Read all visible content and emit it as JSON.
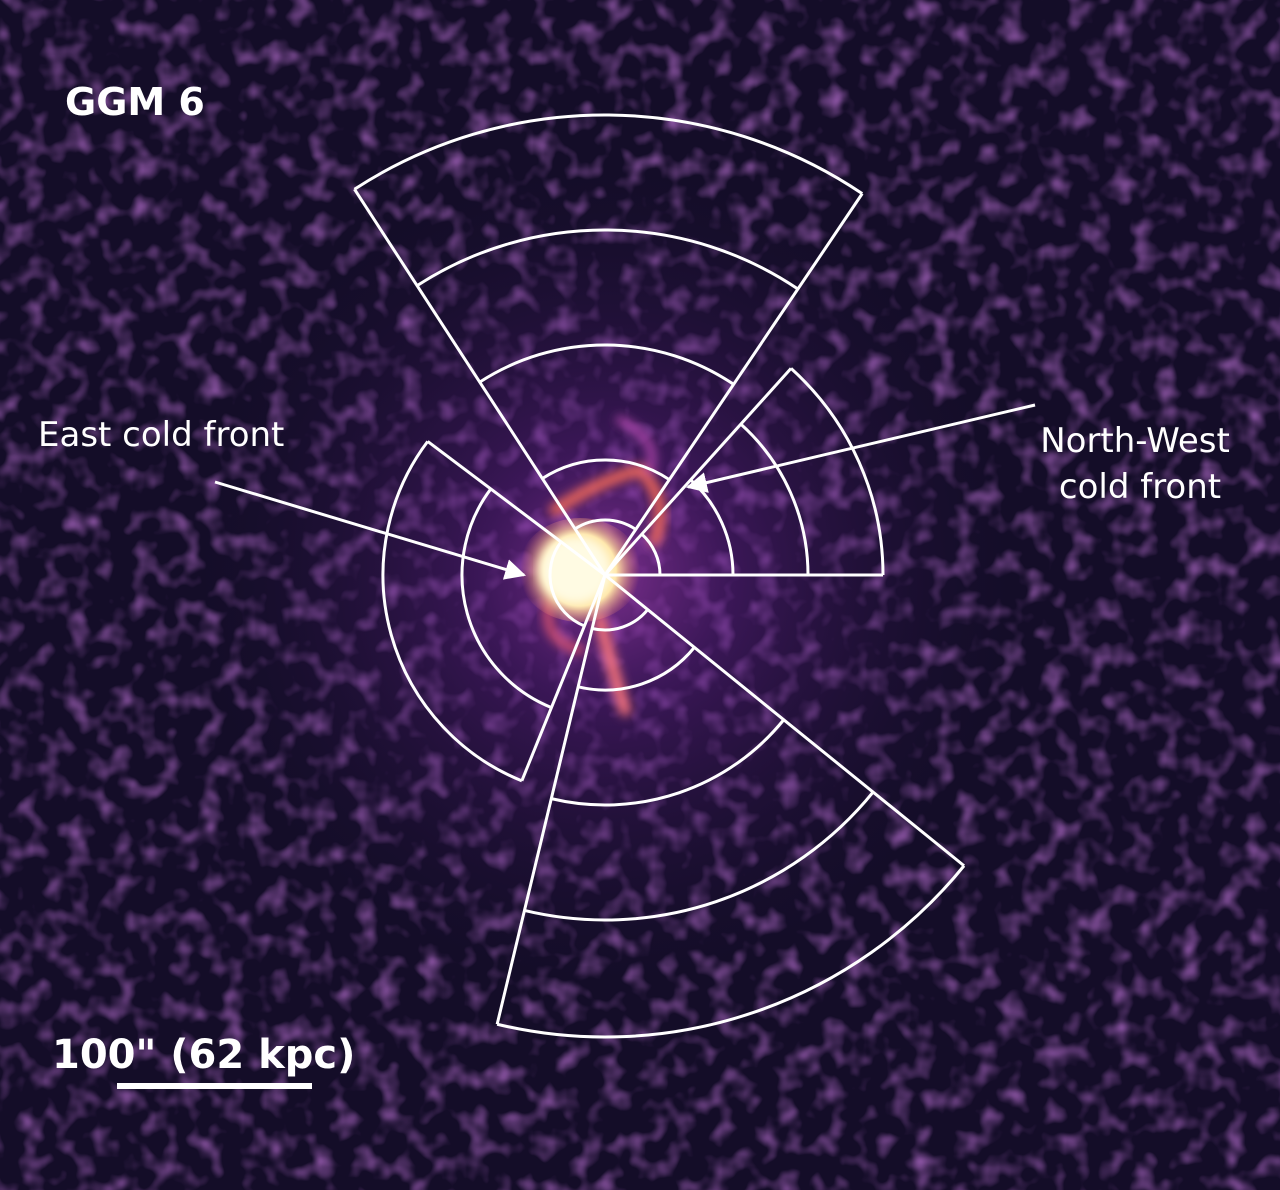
{
  "title": "GGM 6",
  "annotations": [
    {
      "label": "East cold front"
    },
    {
      "lines": [
        "North-West",
        "cold front"
      ]
    }
  ],
  "scale_bar": {
    "label": "100\" (62 kpc)"
  }
}
